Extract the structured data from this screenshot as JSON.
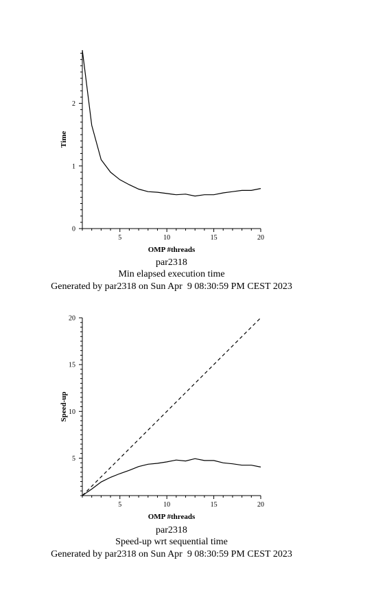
{
  "charts": [
    {
      "caption": {
        "line1": "par2318",
        "line2": "Min elapsed execution time",
        "line3": "Generated by par2318 on Sun Apr  9 08:30:59 PM CEST 2023"
      }
    },
    {
      "caption": {
        "line1": "par2318",
        "line2": "Speed-up wrt sequential time",
        "line3": "Generated by par2318 on Sun Apr  9 08:30:59 PM CEST 2023"
      }
    }
  ],
  "chart_data": [
    {
      "type": "line",
      "xlabel": "OMP #threads",
      "ylabel": "Time",
      "xlim": [
        1,
        20
      ],
      "ylim": [
        0,
        2.85
      ],
      "xticks": [
        5,
        10,
        15,
        20
      ],
      "yticks": [
        0,
        1,
        2
      ],
      "grid": false,
      "series": [
        {
          "x": [
            1,
            2,
            3,
            4,
            5,
            6,
            7,
            8,
            9,
            10,
            11,
            12,
            13,
            14,
            15,
            16,
            17,
            18,
            19,
            20
          ],
          "values": [
            2.85,
            1.65,
            1.1,
            0.9,
            0.78,
            0.7,
            0.63,
            0.59,
            0.58,
            0.56,
            0.54,
            0.55,
            0.52,
            0.54,
            0.54,
            0.57,
            0.59,
            0.61,
            0.61,
            0.64
          ]
        }
      ]
    },
    {
      "type": "line",
      "xlabel": "OMP #threads",
      "ylabel": "Speed-up",
      "xlim": [
        1,
        20
      ],
      "ylim": [
        1,
        20
      ],
      "xticks": [
        5,
        10,
        15,
        20
      ],
      "yticks": [
        5,
        10,
        15,
        20
      ],
      "grid": false,
      "series": [
        {
          "style": "dashed",
          "x": [
            1,
            20
          ],
          "values": [
            1,
            20
          ]
        },
        {
          "style": "solid",
          "x": [
            1,
            2,
            3,
            4,
            5,
            6,
            7,
            8,
            9,
            10,
            11,
            12,
            13,
            14,
            15,
            16,
            17,
            18,
            19,
            20
          ],
          "values": [
            1.0,
            1.7,
            2.45,
            2.95,
            3.35,
            3.7,
            4.1,
            4.35,
            4.45,
            4.6,
            4.8,
            4.7,
            4.95,
            4.75,
            4.75,
            4.5,
            4.4,
            4.25,
            4.25,
            4.05
          ]
        }
      ]
    }
  ]
}
